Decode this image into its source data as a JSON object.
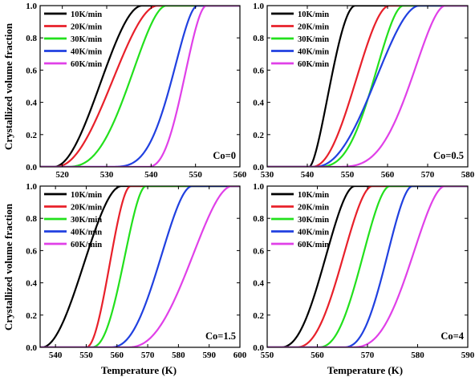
{
  "figure": {
    "ylabel": "Crystallized volume fraction",
    "xlabel": "Temperature (K)"
  },
  "chart_data": [
    {
      "type": "line",
      "panel": "top-left",
      "annotation": "Co=0",
      "xlim": [
        515,
        560
      ],
      "ylim": [
        0,
        1.0
      ],
      "xticks": [
        520,
        530,
        540,
        550,
        560
      ],
      "yticks": [
        0.0,
        0.2,
        0.4,
        0.6,
        0.8,
        1.0
      ],
      "legend_position": "top-left",
      "grid": false,
      "series": [
        {
          "name": "10K/min",
          "color": "#000000",
          "onset": 518.0,
          "end": 538.0,
          "shape": 1.05
        },
        {
          "name": "20K/min",
          "color": "#e8202a",
          "onset": 518.3,
          "end": 541.5,
          "shape": 1.12
        },
        {
          "name": "30K/min",
          "color": "#22e01c",
          "onset": 520.5,
          "end": 543.5,
          "shape": 1.45
        },
        {
          "name": "40K/min",
          "color": "#2040e0",
          "onset": 530.0,
          "end": 550.5,
          "shape": 1.9
        },
        {
          "name": "60K/min",
          "color": "#e040e8",
          "onset": 539.0,
          "end": 552.5,
          "shape": 1.35
        }
      ]
    },
    {
      "type": "line",
      "panel": "top-right",
      "annotation": "Co=0.5",
      "xlim": [
        530,
        580
      ],
      "ylim": [
        0,
        1.0
      ],
      "xticks": [
        530,
        540,
        550,
        560,
        570,
        580
      ],
      "yticks": [
        0.0,
        0.2,
        0.4,
        0.6,
        0.8,
        1.0
      ],
      "legend_position": "top-left",
      "grid": false,
      "series": [
        {
          "name": "10K/min",
          "color": "#000000",
          "onset": 540.5,
          "end": 552.0,
          "shape": 0.85
        },
        {
          "name": "20K/min",
          "color": "#e8202a",
          "onset": 541.0,
          "end": 560.5,
          "shape": 1.15
        },
        {
          "name": "30K/min",
          "color": "#22e01c",
          "onset": 542.0,
          "end": 564.0,
          "shape": 1.55
        },
        {
          "name": "40K/min",
          "color": "#2040e0",
          "onset": 541.5,
          "end": 568.0,
          "shape": 1.2
        },
        {
          "name": "60K/min",
          "color": "#e040e8",
          "onset": 546.5,
          "end": 574.5,
          "shape": 1.75
        }
      ]
    },
    {
      "type": "line",
      "panel": "bottom-left",
      "annotation": "Co=1.5",
      "xlim": [
        535,
        600
      ],
      "ylim": [
        0,
        1.0
      ],
      "xticks": [
        540,
        550,
        560,
        570,
        580,
        590,
        600
      ],
      "yticks": [
        0.0,
        0.2,
        0.4,
        0.6,
        0.8,
        1.0
      ],
      "legend_position": "top-left",
      "grid": false,
      "series": [
        {
          "name": "10K/min",
          "color": "#000000",
          "onset": 535.5,
          "end": 561.5,
          "shape": 1.05
        },
        {
          "name": "20K/min",
          "color": "#e8202a",
          "onset": 550.0,
          "end": 564.5,
          "shape": 1.05
        },
        {
          "name": "30K/min",
          "color": "#22e01c",
          "onset": 551.5,
          "end": 569.5,
          "shape": 1.25
        },
        {
          "name": "40K/min",
          "color": "#2040e0",
          "onset": 557.5,
          "end": 584.5,
          "shape": 1.3
        },
        {
          "name": "60K/min",
          "color": "#e040e8",
          "onset": 563.0,
          "end": 597.5,
          "shape": 1.3
        }
      ]
    },
    {
      "type": "line",
      "panel": "bottom-right",
      "annotation": "Co=4",
      "xlim": [
        550,
        590
      ],
      "ylim": [
        0,
        1.0
      ],
      "xticks": [
        550,
        560,
        570,
        580,
        590
      ],
      "yticks": [
        0.0,
        0.2,
        0.4,
        0.6,
        0.8,
        1.0
      ],
      "legend_position": "top-left",
      "grid": false,
      "series": [
        {
          "name": "10K/min",
          "color": "#000000",
          "onset": 552.5,
          "end": 567.5,
          "shape": 1.25
        },
        {
          "name": "20K/min",
          "color": "#e8202a",
          "onset": 555.5,
          "end": 571.0,
          "shape": 1.3
        },
        {
          "name": "30K/min",
          "color": "#22e01c",
          "onset": 560.0,
          "end": 574.5,
          "shape": 1.3
        },
        {
          "name": "40K/min",
          "color": "#2040e0",
          "onset": 565.0,
          "end": 579.0,
          "shape": 1.35
        },
        {
          "name": "60K/min",
          "color": "#e040e8",
          "onset": 566.5,
          "end": 585.5,
          "shape": 1.45
        }
      ]
    }
  ]
}
